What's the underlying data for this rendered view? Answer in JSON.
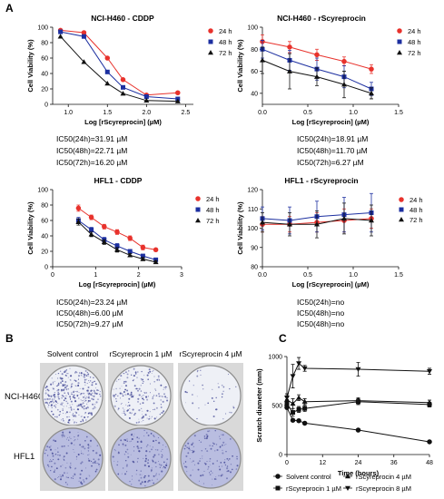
{
  "panel_letters": {
    "a": "A",
    "b": "B",
    "c": "C"
  },
  "ic50_notes": {
    "p1": [
      "IC50(24h)=31.91 µM",
      "IC50(48h)=22.71 µM",
      "IC50(72h)=16.20 µM"
    ],
    "p2": [
      "IC50(24h)=18.91 µM",
      "IC50(48h)=11.70 µM",
      "IC50(72h)=6.27 µM"
    ],
    "p3": [
      "IC50(24h)=23.24 µM",
      "IC50(48h)=6.00 µM",
      "IC50(72h)=9.27 µM"
    ],
    "p4": [
      "IC50(24h)=no",
      "IC50(48h)=no",
      "IC50(48h)=no"
    ]
  },
  "panel_b": {
    "col_labels": [
      "Solvent control",
      "rScyreprocin 1 µM",
      "rScyreprocin 4 µM"
    ],
    "row_labels": [
      "NCI-H460",
      "HFL1"
    ],
    "colony_density": [
      [
        0.85,
        0.45,
        0.1
      ],
      [
        0.35,
        0.35,
        0.3
      ]
    ],
    "colors": {
      "plate_bg": "#eef0f6",
      "colony": "#4a4f9a",
      "hfl_bg": "#b9bde0"
    }
  },
  "chart_data": [
    {
      "type": "line",
      "title": "NCI-H460 - CDDP",
      "xlabel": "Log [rScyreprocin] (µM)",
      "ylabel": "Cell Viability (%)",
      "xlim": [
        0.8,
        2.6
      ],
      "ylim": [
        0,
        100
      ],
      "xticks": [
        1.0,
        1.5,
        2.0,
        2.5
      ],
      "yticks": [
        0,
        20,
        40,
        60,
        80,
        100
      ],
      "grid": false,
      "legend": "top-right",
      "series": [
        {
          "name": "24 h",
          "color": "#e8322c",
          "marker": "circle",
          "x": [
            0.9,
            1.2,
            1.5,
            1.7,
            2.0,
            2.4
          ],
          "y": [
            96,
            93,
            60,
            32,
            12,
            15
          ]
        },
        {
          "name": "48 h",
          "color": "#1c2fa0",
          "marker": "square",
          "x": [
            0.9,
            1.2,
            1.5,
            1.7,
            2.0,
            2.4
          ],
          "y": [
            94,
            88,
            42,
            22,
            10,
            7
          ]
        },
        {
          "name": "72 h",
          "color": "#111111",
          "marker": "triangle",
          "x": [
            0.9,
            1.2,
            1.5,
            1.7,
            2.0,
            2.4
          ],
          "y": [
            88,
            55,
            27,
            14,
            5,
            4
          ]
        }
      ]
    },
    {
      "type": "line",
      "title": "NCI-H460 - rScyreprocin",
      "xlabel": "Log [rScyreprocin] (µM)",
      "ylabel": "Cell Viability (%)",
      "xlim": [
        0,
        1.5
      ],
      "ylim": [
        30,
        100
      ],
      "xticks": [
        0.0,
        0.5,
        1.0,
        1.5
      ],
      "yticks": [
        40,
        60,
        80,
        100
      ],
      "grid": false,
      "legend": "top-right",
      "series": [
        {
          "name": "24 h",
          "color": "#e8322c",
          "marker": "circle",
          "x": [
            0,
            0.3,
            0.6,
            0.9,
            1.2
          ],
          "y": [
            87,
            82,
            75,
            69,
            62
          ],
          "err": [
            6,
            5,
            5,
            4,
            4
          ]
        },
        {
          "name": "48 h",
          "color": "#1c2fa0",
          "marker": "square",
          "x": [
            0,
            0.3,
            0.6,
            0.9,
            1.2
          ],
          "y": [
            80,
            70,
            62,
            55,
            44
          ],
          "err": [
            8,
            9,
            10,
            10,
            6
          ]
        },
        {
          "name": "72 h",
          "color": "#111111",
          "marker": "triangle",
          "x": [
            0,
            0.3,
            0.6,
            0.9,
            1.2
          ],
          "y": [
            70,
            60,
            55,
            48,
            40
          ],
          "err": [
            12,
            16,
            8,
            12,
            5
          ]
        }
      ]
    },
    {
      "type": "line",
      "title": "HFL1 - CDDP",
      "xlabel": "Log [rScyreprocin] (µM)",
      "ylabel": "Cell Viability (%)",
      "xlim": [
        0,
        3
      ],
      "ylim": [
        0,
        100
      ],
      "xticks": [
        0,
        1,
        2,
        3
      ],
      "yticks": [
        0,
        20,
        40,
        60,
        80,
        100
      ],
      "grid": false,
      "legend": "top-right",
      "series": [
        {
          "name": "24 h",
          "color": "#e8322c",
          "marker": "circle",
          "x": [
            0.6,
            0.9,
            1.2,
            1.5,
            1.8,
            2.1,
            2.4
          ],
          "y": [
            76,
            64,
            52,
            45,
            37,
            25,
            22
          ],
          "err": [
            4,
            3,
            3,
            3,
            3,
            3,
            2
          ]
        },
        {
          "name": "48 h",
          "color": "#1c2fa0",
          "marker": "square",
          "x": [
            0.6,
            0.9,
            1.2,
            1.5,
            1.8,
            2.1,
            2.4
          ],
          "y": [
            60,
            48,
            35,
            27,
            20,
            14,
            9
          ],
          "err": [
            4,
            3,
            3,
            3,
            2,
            2,
            2
          ]
        },
        {
          "name": "72 h",
          "color": "#111111",
          "marker": "triangle",
          "x": [
            0.6,
            0.9,
            1.2,
            1.5,
            1.8,
            2.1,
            2.4
          ],
          "y": [
            58,
            42,
            32,
            22,
            15,
            10,
            6
          ],
          "err": [
            4,
            3,
            3,
            3,
            2,
            2,
            2
          ]
        }
      ]
    },
    {
      "type": "line",
      "title": "HFL1 - rScyreprocin",
      "xlabel": "Log [rScyreprocin] (µM)",
      "ylabel": "Cell Viability (%)",
      "xlim": [
        0,
        1.5
      ],
      "ylim": [
        80,
        120
      ],
      "xticks": [
        0.0,
        0.5,
        1.0,
        1.5
      ],
      "yticks": [
        80,
        90,
        100,
        110,
        120
      ],
      "grid": false,
      "legend": "top-right",
      "series": [
        {
          "name": "24 h",
          "color": "#e8322c",
          "marker": "circle",
          "x": [
            0,
            0.3,
            0.6,
            0.9,
            1.2
          ],
          "y": [
            102,
            102,
            103,
            104,
            105
          ],
          "err": [
            4,
            4,
            5,
            6,
            5
          ]
        },
        {
          "name": "48 h",
          "color": "#1c2fa0",
          "marker": "square",
          "x": [
            0,
            0.3,
            0.6,
            0.9,
            1.2
          ],
          "y": [
            105,
            104,
            106,
            107,
            108
          ],
          "err": [
            6,
            7,
            8,
            9,
            10
          ]
        },
        {
          "name": "72 h",
          "color": "#111111",
          "marker": "triangle",
          "x": [
            0,
            0.3,
            0.6,
            0.9,
            1.2
          ],
          "y": [
            103,
            102,
            102,
            105,
            104
          ],
          "err": [
            5,
            6,
            7,
            8,
            8
          ]
        }
      ]
    },
    {
      "type": "line",
      "title": "",
      "xlabel": "Time (hours)",
      "ylabel": "Scratch diameter (mm)",
      "xlim": [
        0,
        48
      ],
      "ylim": [
        0,
        1000
      ],
      "xticks": [
        0,
        12,
        24,
        36,
        48
      ],
      "yticks": [
        0,
        500,
        1000
      ],
      "grid": false,
      "legend": "bottom",
      "series": [
        {
          "name": "Solvent control",
          "color": "#111111",
          "marker": "circle",
          "x": [
            0,
            2,
            4,
            6,
            24,
            48
          ],
          "y": [
            480,
            350,
            345,
            320,
            250,
            130
          ]
        },
        {
          "name": "rScyreprocin 1 µM",
          "color": "#111111",
          "marker": "square",
          "x": [
            0,
            2,
            4,
            6,
            24,
            48
          ],
          "y": [
            520,
            430,
            460,
            470,
            540,
            510
          ],
          "err": [
            40,
            40,
            30,
            30,
            30,
            25
          ]
        },
        {
          "name": "rScyreprocin 4 µM",
          "color": "#111111",
          "marker": "triangle",
          "x": [
            0,
            2,
            4,
            6,
            24,
            48
          ],
          "y": [
            560,
            520,
            580,
            540,
            550,
            530
          ],
          "err": [
            40,
            50,
            30,
            30,
            30,
            25
          ]
        },
        {
          "name": "rScyreprocin 8 µM",
          "color": "#111111",
          "marker": "invtriangle",
          "x": [
            0,
            2,
            4,
            6,
            24,
            48
          ],
          "y": [
            580,
            800,
            930,
            880,
            870,
            850
          ],
          "err": [
            40,
            120,
            60,
            30,
            70,
            30
          ]
        }
      ]
    }
  ]
}
